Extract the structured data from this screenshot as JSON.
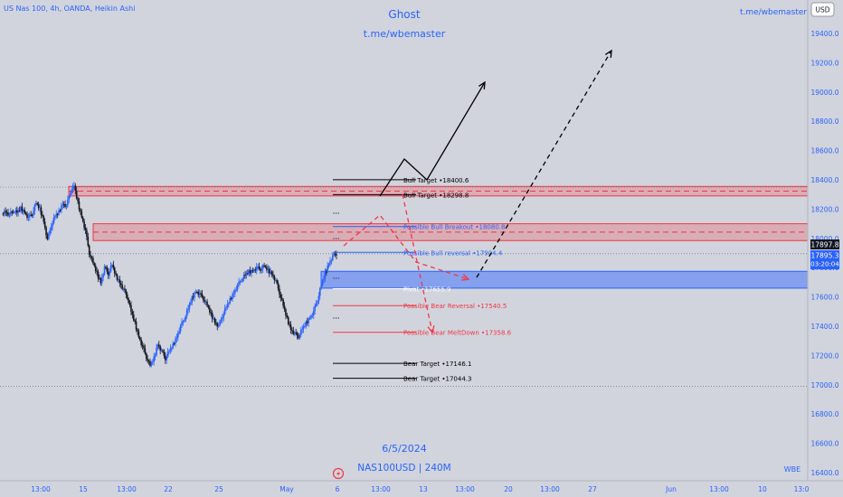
{
  "header": {
    "symbol_title": "US Nas 100, 4h, OANDA, Heikin Ashi",
    "center_title": "Ghost",
    "center_link": "t.me/wbemaster",
    "right_link": "t.me/wbemaster",
    "currency_button": "USD"
  },
  "footer": {
    "date": "6/5/2024",
    "symbol_interval": "NAS100USD | 240M",
    "right_tag": "WBE"
  },
  "price_tags": {
    "last": "17897.8",
    "current": "17895.3",
    "countdown": "03:20:04"
  },
  "chart_data": {
    "type": "candlestick",
    "style": "Heikin Ashi",
    "interval": "4h",
    "y_axis": {
      "ticks": [
        16400,
        16600,
        16800,
        17000,
        17200,
        17400,
        17600,
        17800,
        18000,
        18200,
        18400,
        18600,
        18800,
        19000,
        19200,
        19400
      ],
      "tick_labels": [
        "16400.0",
        "16600.0",
        "16800.0",
        "17000.0",
        "17200.0",
        "17400.0",
        "17600.0",
        "17800.0",
        "18000.0",
        "18200.0",
        "18400.0",
        "18600.0",
        "18800.0",
        "19000.0",
        "19200.0",
        "19400.0"
      ],
      "range": [
        16340,
        19560
      ]
    },
    "x_axis": {
      "tick_labels": [
        "13:00",
        "15",
        "13:00",
        "22",
        "25",
        "May",
        "6",
        "13:00",
        "13",
        "13:00",
        "20",
        "13:00",
        "27",
        "Jun",
        "13:00",
        "10",
        "13:0"
      ]
    },
    "price_path": [
      18170,
      18185,
      18160,
      18190,
      18175,
      18205,
      18180,
      18140,
      18170,
      18240,
      18200,
      18120,
      17990,
      18090,
      18150,
      18180,
      18240,
      18220,
      18320,
      18360,
      18240,
      18150,
      18050,
      17900,
      17830,
      17760,
      17700,
      17800,
      17760,
      17820,
      17740,
      17700,
      17650,
      17600,
      17500,
      17420,
      17330,
      17260,
      17190,
      17130,
      17180,
      17280,
      17230,
      17180,
      17230,
      17270,
      17330,
      17400,
      17450,
      17520,
      17590,
      17640,
      17620,
      17590,
      17540,
      17480,
      17430,
      17400,
      17470,
      17530,
      17580,
      17630,
      17680,
      17720,
      17750,
      17770,
      17780,
      17800,
      17790,
      17810,
      17780,
      17760,
      17710,
      17630,
      17540,
      17450,
      17380,
      17350,
      17330,
      17380,
      17420,
      17460,
      17500,
      17580,
      17680,
      17760,
      17830,
      17880,
      17895
    ],
    "levels": [
      {
        "label": "Bull Target •18400.6",
        "value": 18400.6,
        "color": "#000000"
      },
      {
        "label": "Bull Target •18298.8",
        "value": 18298.8,
        "color": "#000000"
      },
      {
        "label": "Possible Bull Breakout •18080.8",
        "value": 18080.8,
        "color": "#2962ff"
      },
      {
        "label": "Possible Bull reversal •17904.4",
        "value": 17904.4,
        "color": "#2962ff"
      },
      {
        "label": "Pivot •17655.9",
        "value": 17655.9,
        "color": "#ffffff"
      },
      {
        "label": "Possible Bear Reversal •17540.5",
        "value": 17540.5,
        "color": "#f23645"
      },
      {
        "label": "Possible Bear MeltDown •17358.6",
        "value": 17358.6,
        "color": "#f23645"
      },
      {
        "label": "Bear Target •17146.1",
        "value": 17146.1,
        "color": "#000000"
      },
      {
        "label": "Bear Target •17044.3",
        "value": 17044.3,
        "color": "#000000"
      }
    ],
    "zones": [
      {
        "kind": "supply",
        "top": 18355,
        "bottom": 18290,
        "color": "#f23645"
      },
      {
        "kind": "supply",
        "top": 18100,
        "bottom": 17985,
        "color": "#f23645"
      },
      {
        "kind": "demand",
        "top": 17775,
        "bottom": 17660,
        "color": "#2962ff"
      }
    ],
    "reference_lines": [
      18350,
      17895,
      16990
    ],
    "projections": [
      {
        "style": "solid",
        "color": "#000000",
        "points": [
          [
            0,
            18290
          ],
          [
            1,
            18550
          ],
          [
            2,
            18400
          ],
          [
            3,
            19080
          ]
        ]
      },
      {
        "style": "dashed",
        "color": "#000000",
        "points": [
          [
            0,
            17720
          ],
          [
            1,
            19280
          ]
        ]
      },
      {
        "style": "dashed",
        "color": "#f23645",
        "points": [
          [
            0,
            17900
          ],
          [
            1,
            18150
          ],
          [
            2,
            17720
          ]
        ]
      },
      {
        "style": "dashed",
        "color": "#f23645",
        "points": [
          [
            0,
            18300
          ],
          [
            1,
            17340
          ]
        ]
      }
    ]
  }
}
